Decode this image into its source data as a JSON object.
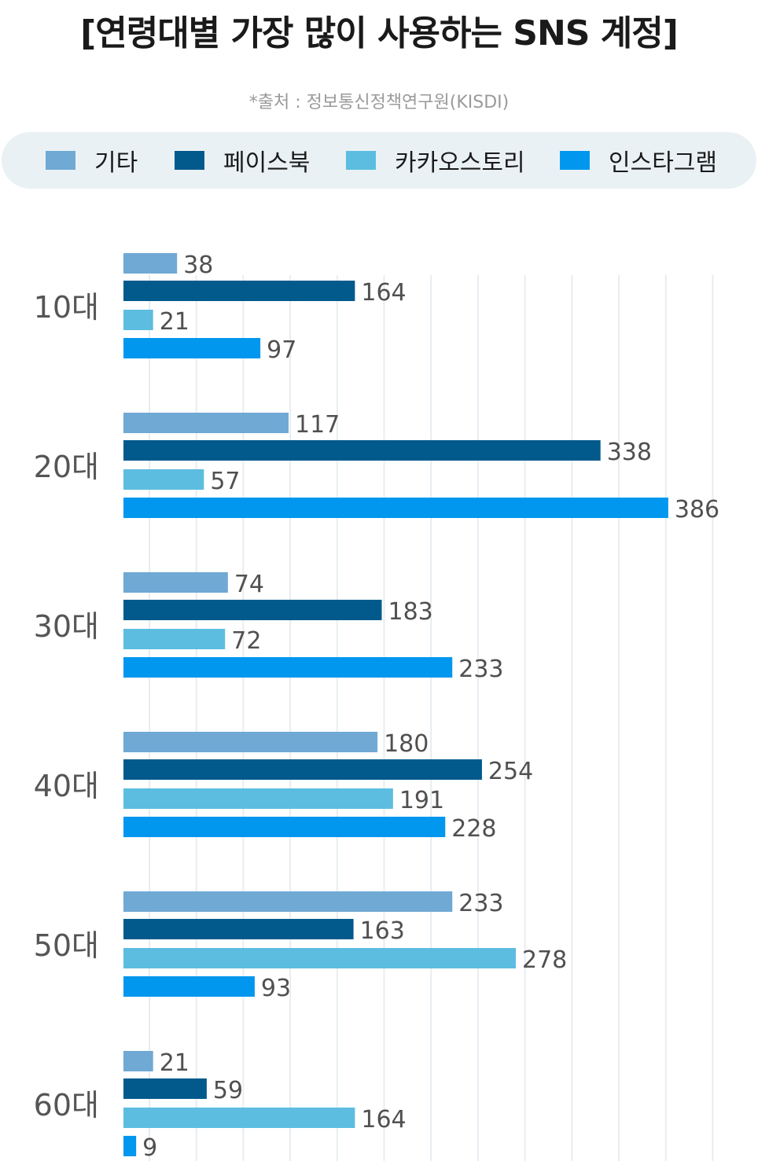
{
  "title": "[연령대별 가장 많이 사용하는 SNS 계정]",
  "source": "*출처 : 정보통신정책연구원(KISDI)",
  "legend": {
    "items": [
      {
        "label": "기타",
        "color": "#6fa9d4"
      },
      {
        "label": "페이스북",
        "color": "#025a8c"
      },
      {
        "label": "카카오스토리",
        "color": "#5cbde0"
      },
      {
        "label": "인스타그램",
        "color": "#0197ef"
      }
    ]
  },
  "chart_data": {
    "type": "bar",
    "orientation": "horizontal",
    "title": "[연령대별 가장 많이 사용하는 SNS 계정]",
    "categories": [
      "10대",
      "20대",
      "30대",
      "40대",
      "50대",
      "60대"
    ],
    "series": [
      {
        "name": "기타",
        "color": "#6fa9d4",
        "values": [
          38,
          117,
          74,
          180,
          233,
          21
        ]
      },
      {
        "name": "페이스북",
        "color": "#025a8c",
        "values": [
          164,
          338,
          183,
          254,
          163,
          59
        ]
      },
      {
        "name": "카카오스토리",
        "color": "#5cbde0",
        "values": [
          21,
          57,
          72,
          191,
          278,
          164
        ]
      },
      {
        "name": "인스타그램",
        "color": "#0197ef",
        "values": [
          97,
          386,
          233,
          228,
          93,
          9
        ]
      }
    ],
    "xlim": [
      0,
      420
    ],
    "grid": true,
    "legend_position": "top"
  }
}
